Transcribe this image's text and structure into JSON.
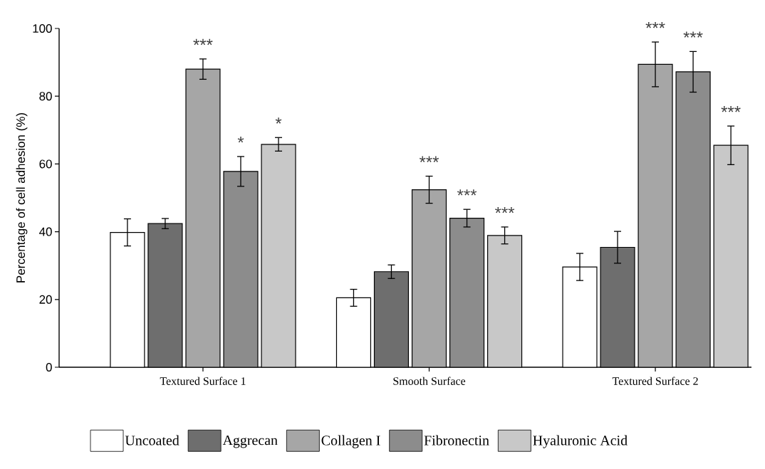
{
  "chart_data": {
    "type": "bar",
    "ylabel": "Percentage of cell adhesion (%)",
    "categories": [
      "Textured Surface 1",
      "Smooth Surface",
      "Textured Surface 2"
    ],
    "series": [
      {
        "name": "Uncoated",
        "color": "#ffffff",
        "values": [
          39.8,
          20.5,
          29.6
        ],
        "errors": [
          4,
          2.5,
          4
        ]
      },
      {
        "name": "Aggrecan",
        "color": "#6e6e6e",
        "values": [
          42.4,
          28.2,
          35.4
        ],
        "errors": [
          1.5,
          2,
          4.7
        ]
      },
      {
        "name": "Collagen I",
        "color": "#a6a6a6",
        "values": [
          88.0,
          52.4,
          89.4
        ],
        "errors": [
          3,
          4,
          6.6
        ],
        "value_labels": [
          "***",
          "***",
          "***"
        ]
      },
      {
        "name": "Fibronectin",
        "color": "#8c8c8c",
        "values": [
          57.8,
          44.0,
          87.2
        ],
        "errors": [
          4.4,
          2.6,
          6
        ],
        "value_labels": [
          "*",
          "***",
          "***"
        ]
      },
      {
        "name": "Hyaluronic Acid",
        "color": "#c8c8c8",
        "values": [
          65.8,
          38.9,
          65.5
        ],
        "errors": [
          2,
          2.5,
          5.7
        ],
        "value_labels": [
          "*",
          "***",
          "***"
        ]
      }
    ],
    "ylim": [
      0,
      100
    ],
    "yticks": [
      0,
      20,
      40,
      60,
      80,
      100
    ],
    "legend": "bottom"
  }
}
